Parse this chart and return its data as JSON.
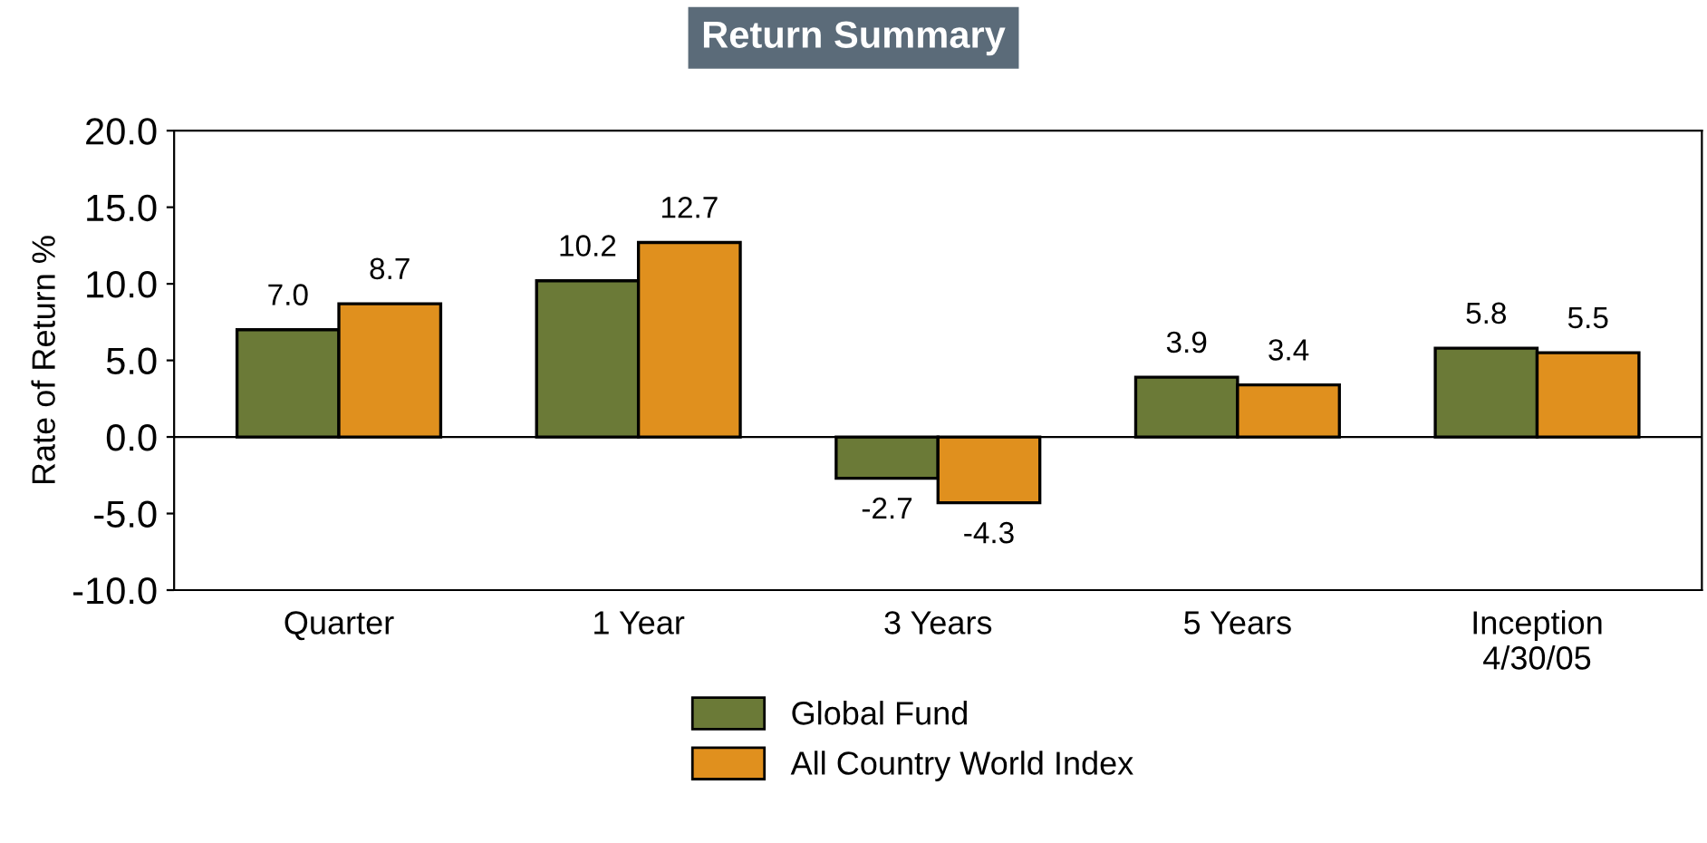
{
  "chart_data": {
    "type": "bar",
    "title": "Return Summary",
    "ylabel": "Rate of Return %",
    "categories": [
      "Quarter",
      "1 Year",
      "3 Years",
      "5 Years",
      "Inception\n4/30/05"
    ],
    "series": [
      {
        "name": "Global Fund",
        "color": "#6b7a37",
        "values": [
          7.0,
          10.2,
          -2.7,
          3.9,
          5.8
        ],
        "value_labels": [
          "7.0",
          "10.2",
          "-2.7",
          "3.9",
          "5.8"
        ]
      },
      {
        "name": "All Country World Index",
        "color": "#e0901e",
        "values": [
          8.7,
          12.7,
          -4.3,
          3.4,
          5.5
        ],
        "value_labels": [
          "8.7",
          "12.7",
          "-4.3",
          "3.4",
          "5.5"
        ]
      }
    ],
    "ylim": [
      -10,
      20
    ],
    "yticks": [
      {
        "value": -10,
        "label": "-10.0"
      },
      {
        "value": -5,
        "label": "-5.0"
      },
      {
        "value": 0,
        "label": "0.0"
      },
      {
        "value": 5,
        "label": "5.0"
      },
      {
        "value": 10,
        "label": "10.0"
      },
      {
        "value": 15,
        "label": "15.0"
      },
      {
        "value": 20,
        "label": "20.0"
      }
    ],
    "ref_lines": [
      {
        "axis": "y",
        "value": 0,
        "color": "#000000"
      }
    ],
    "grid": false,
    "legend": "bottom"
  }
}
